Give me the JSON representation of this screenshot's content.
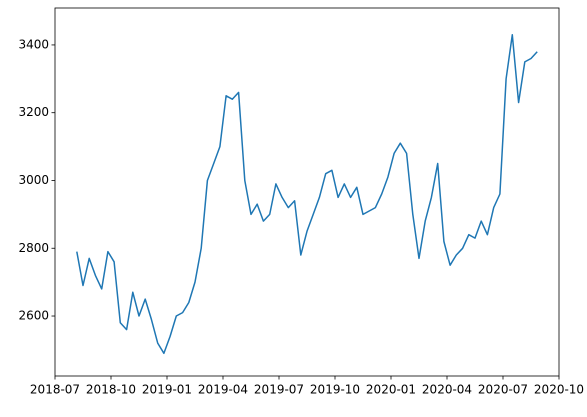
{
  "chart_data": {
    "type": "line",
    "x": [
      "2018-08",
      "2018-08",
      "2018-08",
      "2018-09",
      "2018-09",
      "2018-09",
      "2018-10",
      "2018-10",
      "2018-10",
      "2018-11",
      "2018-11",
      "2018-11",
      "2018-12",
      "2018-12",
      "2018-12",
      "2019-01",
      "2019-01",
      "2019-01",
      "2019-02",
      "2019-02",
      "2019-02",
      "2019-03",
      "2019-03",
      "2019-03",
      "2019-04",
      "2019-04",
      "2019-04",
      "2019-05",
      "2019-05",
      "2019-05",
      "2019-06",
      "2019-06",
      "2019-06",
      "2019-07",
      "2019-07",
      "2019-07",
      "2019-08",
      "2019-08",
      "2019-08",
      "2019-09",
      "2019-09",
      "2019-09",
      "2019-10",
      "2019-10",
      "2019-10",
      "2019-11",
      "2019-11",
      "2019-11",
      "2019-12",
      "2019-12",
      "2019-12",
      "2020-01",
      "2020-01",
      "2020-01",
      "2020-02",
      "2020-02",
      "2020-02",
      "2020-03",
      "2020-03",
      "2020-03",
      "2020-04",
      "2020-04",
      "2020-04",
      "2020-05",
      "2020-05",
      "2020-05",
      "2020-06",
      "2020-06",
      "2020-06",
      "2020-07",
      "2020-07",
      "2020-07",
      "2020-08",
      "2020-08",
      "2020-08"
    ],
    "series": [
      {
        "color": "#1f77b4",
        "values": [
          2790,
          2690,
          2770,
          2720,
          2680,
          2790,
          2760,
          2580,
          2560,
          2670,
          2600,
          2650,
          2590,
          2520,
          2490,
          2540,
          2600,
          2610,
          2640,
          2700,
          2800,
          3000,
          3050,
          3100,
          3250,
          3240,
          3260,
          3000,
          2900,
          2930,
          2880,
          2900,
          2990,
          2950,
          2920,
          2940,
          2780,
          2850,
          2900,
          2950,
          3020,
          3030,
          2950,
          2990,
          2950,
          2980,
          2900,
          2910,
          2920,
          2960,
          3010,
          3080,
          3110,
          3080,
          2900,
          2770,
          2880,
          2950,
          3050,
          2820,
          2750,
          2780,
          2800,
          2840,
          2830,
          2880,
          2840,
          2920,
          2960,
          3300,
          3430,
          3230,
          3350,
          3360,
          3380
        ]
      }
    ],
    "xlim": [
      "2018-07",
      "2020-10"
    ],
    "xticks": [
      "2018-07",
      "2018-10",
      "2019-01",
      "2019-04",
      "2019-07",
      "2019-10",
      "2020-01",
      "2020-04",
      "2020-07",
      "2020-10"
    ],
    "ylim": [
      2423,
      3509
    ],
    "yticks": [
      2600,
      2800,
      3000,
      3200,
      3400
    ]
  }
}
